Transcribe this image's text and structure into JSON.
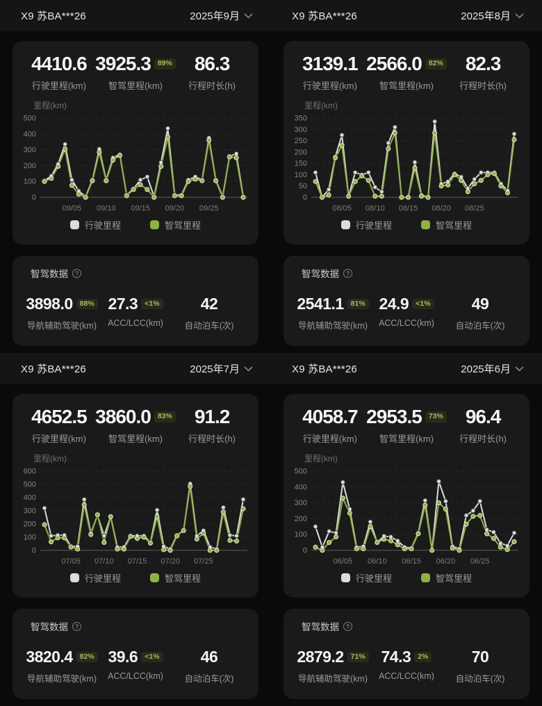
{
  "accent_green": "#8FB23F",
  "series_white": "#DCDCDC",
  "panels": [
    {
      "header": {
        "title": "X9 苏BA***26",
        "month": "2025年9月"
      },
      "stats": [
        {
          "value": "4410.6",
          "label": "行驶里程(km)"
        },
        {
          "value": "3925.3",
          "badge": "89%",
          "label": "智驾里程(km)"
        },
        {
          "value": "86.3",
          "label": "行程时长(h)"
        }
      ],
      "smart": {
        "title": "智驾数据",
        "items": [
          {
            "value": "3898.0",
            "badge": "88%",
            "label": "导航辅助驾驶(km)"
          },
          {
            "value": "27.3",
            "badge": "<1%",
            "label": "ACC/LCC(km)"
          },
          {
            "value": "42",
            "label": "自动泊车(次)"
          }
        ]
      }
    },
    {
      "header": {
        "title": "X9 苏BA***26",
        "month": "2025年8月"
      },
      "stats": [
        {
          "value": "3139.1",
          "label": "行驶里程(km)"
        },
        {
          "value": "2566.0",
          "badge": "82%",
          "label": "智驾里程(km)"
        },
        {
          "value": "82.3",
          "label": "行程时长(h)"
        }
      ],
      "smart": {
        "title": "智驾数据",
        "items": [
          {
            "value": "2541.1",
            "badge": "81%",
            "label": "导航辅助驾驶(km)"
          },
          {
            "value": "24.9",
            "badge": "<1%",
            "label": "ACC/LCC(km)"
          },
          {
            "value": "49",
            "label": "自动泊车(次)"
          }
        ]
      }
    },
    {
      "header": {
        "title": "X9 苏BA***26",
        "month": "2025年7月"
      },
      "stats": [
        {
          "value": "4652.5",
          "label": "行驶里程(km)"
        },
        {
          "value": "3860.0",
          "badge": "83%",
          "label": "智驾里程(km)"
        },
        {
          "value": "91.2",
          "label": "行程时长(h)"
        }
      ],
      "smart": {
        "title": "智驾数据",
        "items": [
          {
            "value": "3820.4",
            "badge": "82%",
            "label": "导航辅助驾驶(km)"
          },
          {
            "value": "39.6",
            "badge": "<1%",
            "label": "ACC/LCC(km)"
          },
          {
            "value": "46",
            "label": "自动泊车(次)"
          }
        ]
      }
    },
    {
      "header": {
        "title": "X9 苏BA***26",
        "month": "2025年6月"
      },
      "stats": [
        {
          "value": "4058.7",
          "label": "行驶里程(km)"
        },
        {
          "value": "2953.5",
          "badge": "73%",
          "label": "智驾里程(km)"
        },
        {
          "value": "96.4",
          "label": "行程时长(h)"
        }
      ],
      "smart": {
        "title": "智驾数据",
        "items": [
          {
            "value": "2879.2",
            "badge": "71%",
            "label": "导航辅助驾驶(km)"
          },
          {
            "value": "74.3",
            "badge": "2%",
            "label": "ACC/LCC(km)"
          },
          {
            "value": "70",
            "label": "自动泊车(次)"
          }
        ]
      }
    }
  ],
  "chart_data": [
    {
      "type": "line",
      "title": "2025年9月 每日里程",
      "ylabel": "里程(km)",
      "ylim": [
        0,
        500
      ],
      "yticks": [
        0,
        100,
        200,
        300,
        400,
        500
      ],
      "xtick_labels": [
        "09/05",
        "09/10",
        "09/15",
        "09/20",
        "09/25"
      ],
      "xtick_indices": [
        4,
        9,
        14,
        19,
        24
      ],
      "grid": "dashed-horizontal",
      "legend_position": "bottom",
      "legend": [
        "行驶里程",
        "智驾里程"
      ],
      "series": [
        {
          "name": "行驶里程",
          "color": "#DCDCDC",
          "values": [
            105,
            135,
            210,
            335,
            110,
            40,
            5,
            110,
            305,
            110,
            250,
            270,
            15,
            55,
            110,
            130,
            5,
            220,
            435,
            15,
            15,
            110,
            130,
            110,
            375,
            110,
            5,
            260,
            275,
            5
          ]
        },
        {
          "name": "智驾里程",
          "color": "#8FB23F",
          "values": [
            100,
            120,
            195,
            305,
            75,
            20,
            0,
            105,
            285,
            105,
            235,
            265,
            10,
            50,
            80,
            50,
            0,
            195,
            380,
            10,
            10,
            100,
            115,
            105,
            360,
            105,
            0,
            255,
            250,
            0
          ]
        }
      ]
    },
    {
      "type": "line",
      "title": "2025年8月 每日里程",
      "ylabel": "里程(km)",
      "ylim": [
        0,
        350
      ],
      "yticks": [
        0,
        50,
        100,
        150,
        200,
        250,
        300,
        350
      ],
      "xtick_labels": [
        "08/05",
        "08/10",
        "08/15",
        "08/20",
        "08/25"
      ],
      "xtick_indices": [
        4,
        9,
        14,
        19,
        24
      ],
      "grid": "dashed-horizontal",
      "legend_position": "bottom",
      "legend": [
        "行驶里程",
        "智驾里程"
      ],
      "series": [
        {
          "name": "行驶里程",
          "color": "#DCDCDC",
          "values": [
            110,
            0,
            35,
            180,
            275,
            5,
            110,
            100,
            110,
            45,
            25,
            240,
            310,
            0,
            0,
            155,
            10,
            0,
            335,
            60,
            70,
            105,
            90,
            40,
            80,
            110,
            110,
            110,
            60,
            30,
            280
          ]
        },
        {
          "name": "智驾里程",
          "color": "#8FB23F",
          "values": [
            70,
            0,
            10,
            175,
            230,
            5,
            70,
            95,
            75,
            5,
            5,
            215,
            285,
            0,
            0,
            130,
            5,
            0,
            285,
            50,
            55,
            100,
            75,
            25,
            60,
            75,
            100,
            105,
            50,
            20,
            255
          ]
        }
      ]
    },
    {
      "type": "line",
      "title": "2025年7月 每日里程",
      "ylabel": "里程(km)",
      "ylim": [
        0,
        600
      ],
      "yticks": [
        0,
        100,
        200,
        300,
        400,
        500,
        600
      ],
      "xtick_labels": [
        "07/05",
        "07/10",
        "07/15",
        "07/20",
        "07/25"
      ],
      "xtick_indices": [
        4,
        9,
        14,
        19,
        24
      ],
      "grid": "dashed-horizontal",
      "legend_position": "bottom",
      "legend": [
        "行驶里程",
        "智驾里程"
      ],
      "series": [
        {
          "name": "行驶里程",
          "color": "#DCDCDC",
          "values": [
            320,
            110,
            115,
            115,
            30,
            30,
            385,
            130,
            265,
            110,
            255,
            25,
            25,
            110,
            110,
            110,
            60,
            305,
            30,
            10,
            115,
            150,
            505,
            110,
            150,
            25,
            10,
            325,
            115,
            110,
            385
          ]
        },
        {
          "name": "智驾里程",
          "color": "#8FB23F",
          "values": [
            195,
            65,
            95,
            95,
            25,
            10,
            345,
            120,
            270,
            60,
            255,
            10,
            10,
            105,
            90,
            100,
            55,
            255,
            5,
            0,
            110,
            150,
            485,
            85,
            130,
            0,
            0,
            290,
            75,
            70,
            315
          ]
        }
      ]
    },
    {
      "type": "line",
      "title": "2025年6月 每日里程",
      "ylabel": "里程(km)",
      "ylim": [
        0,
        500
      ],
      "yticks": [
        0,
        100,
        200,
        300,
        400,
        500
      ],
      "xtick_labels": [
        "06/05",
        "06/10",
        "06/15",
        "06/20",
        "06/25"
      ],
      "xtick_indices": [
        4,
        9,
        14,
        19,
        24
      ],
      "grid": "dashed-horizontal",
      "legend_position": "bottom",
      "legend": [
        "行驶里程",
        "智驾里程"
      ],
      "series": [
        {
          "name": "行驶里程",
          "color": "#DCDCDC",
          "values": [
            150,
            20,
            120,
            110,
            430,
            260,
            20,
            25,
            180,
            50,
            90,
            85,
            60,
            20,
            15,
            110,
            315,
            0,
            435,
            310,
            25,
            10,
            220,
            250,
            310,
            130,
            115,
            45,
            30,
            110
          ]
        },
        {
          "name": "智驾里程",
          "color": "#8FB23F",
          "values": [
            20,
            0,
            50,
            85,
            330,
            235,
            10,
            10,
            150,
            50,
            70,
            60,
            35,
            10,
            10,
            105,
            285,
            0,
            300,
            260,
            15,
            0,
            165,
            215,
            220,
            105,
            75,
            20,
            5,
            55
          ]
        }
      ]
    }
  ]
}
